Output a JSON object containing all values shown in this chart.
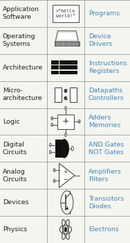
{
  "rows": [
    {
      "label": "Application\nSoftware",
      "right_text": "Programs"
    },
    {
      "label": "Operating\nSystems",
      "right_text": "Device\nDrivers"
    },
    {
      "label": "Architecture",
      "right_text": "Instructions\nRegisters"
    },
    {
      "label": "Micro-\narchitecture",
      "right_text": "Datapaths\nControllers"
    },
    {
      "label": "Logic",
      "right_text": "Adders\nMemories"
    },
    {
      "label": "Digital\nCircuits",
      "right_text": "AND Gates\nNOT Gates"
    },
    {
      "label": "Analog\nCircuits",
      "right_text": "Amplifiers\nFilters"
    },
    {
      "label": "Devices",
      "right_text": "Transistors\nDiodes"
    },
    {
      "label": "Physics",
      "right_text": "Electrons"
    }
  ],
  "bg_color": "#f5f5f0",
  "line_color": "#999999",
  "label_color": "#222222",
  "right_color": "#4488bb",
  "font_size_label": 6.8,
  "font_size_right": 6.8,
  "fig_width": 1.88,
  "fig_height": 3.5,
  "dpi": 100,
  "col1": 0.36,
  "col2": 0.65,
  "col3": 1.0
}
